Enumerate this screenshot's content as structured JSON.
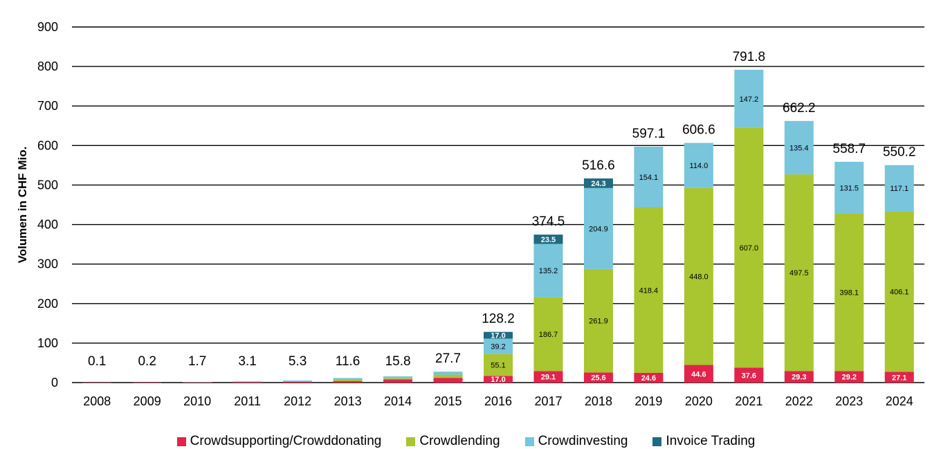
{
  "chart_data": {
    "type": "bar",
    "stacked": true,
    "categories": [
      "2008",
      "2009",
      "2010",
      "2011",
      "2012",
      "2013",
      "2014",
      "2015",
      "2016",
      "2017",
      "2018",
      "2019",
      "2020",
      "2021",
      "2022",
      "2023",
      "2024"
    ],
    "ylabel": "Volumen in CHF Mio.",
    "ylim": [
      0,
      900
    ],
    "yticks": [
      0,
      100,
      200,
      300,
      400,
      500,
      600,
      700,
      800,
      900
    ],
    "grid": true,
    "legend_position": "bottom",
    "series": [
      {
        "name": "Crowdsupporting/Crowddonating",
        "color": "#E2234B",
        "values": [
          0.1,
          0.2,
          1.0,
          1.5,
          2.5,
          4.0,
          8.0,
          12.0,
          17.0,
          29.1,
          25.6,
          24.6,
          44.6,
          37.6,
          29.3,
          29.2,
          27.1
        ],
        "labels": [
          "",
          "",
          "",
          "",
          "",
          "",
          "",
          "",
          "17.0",
          "29.1",
          "25.6",
          "24.6",
          "44.6",
          "37.6",
          "29.3",
          "29.2",
          "27.1"
        ]
      },
      {
        "name": "Crowdlending",
        "color": "#A9C52F",
        "values": [
          0,
          0,
          0,
          0,
          0.5,
          3.0,
          3.0,
          8.0,
          55.1,
          186.7,
          261.9,
          418.4,
          448.0,
          607.0,
          497.5,
          398.1,
          406.1
        ],
        "labels": [
          "",
          "",
          "",
          "",
          "",
          "",
          "",
          "",
          "55.1",
          "186.7",
          "261.9",
          "418.4",
          "448.0",
          "607.0",
          "497.5",
          "398.1",
          "406.1"
        ]
      },
      {
        "name": "Crowdinvesting",
        "color": "#78C5DC",
        "values": [
          0,
          0,
          0.7,
          1.6,
          2.3,
          4.6,
          4.8,
          7.7,
          39.2,
          135.2,
          204.9,
          154.1,
          114.0,
          147.2,
          135.4,
          131.5,
          117.1
        ],
        "labels": [
          "",
          "",
          "",
          "",
          "",
          "",
          "",
          "",
          "39.2",
          "135.2",
          "204.9",
          "154.1",
          "114.0",
          "147.2",
          "135.4",
          "131.5",
          "117.1"
        ]
      },
      {
        "name": "Invoice Trading",
        "color": "#216A7F",
        "values": [
          0,
          0,
          0,
          0,
          0,
          0,
          0,
          0,
          17.0,
          23.5,
          24.3,
          0,
          0,
          0,
          0,
          0,
          0
        ],
        "labels": [
          "",
          "",
          "",
          "",
          "",
          "",
          "",
          "",
          "17.0",
          "23.5",
          "24.3",
          "",
          "",
          "",
          "",
          "",
          ""
        ]
      }
    ],
    "totals": [
      0.1,
      0.2,
      1.7,
      3.1,
      5.3,
      11.6,
      15.8,
      27.7,
      128.2,
      374.5,
      516.6,
      597.1,
      606.6,
      791.8,
      662.2,
      558.7,
      550.2
    ],
    "total_labels": [
      "0.1",
      "0.2",
      "1.7",
      "3.1",
      "5.3",
      "11.6",
      "15.8",
      "27.7",
      "128.2",
      "374.5",
      "516.6",
      "597.1",
      "606.6",
      "791.8",
      "662.2",
      "558.7",
      "550.2"
    ]
  }
}
